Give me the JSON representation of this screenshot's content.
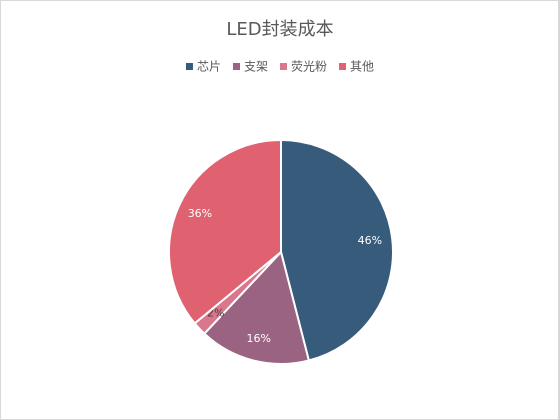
{
  "chart_data": {
    "type": "pie",
    "title": "LED封装成本",
    "categories": [
      "芯片",
      "支架",
      "荧光粉",
      "其他"
    ],
    "values": [
      46,
      16,
      2,
      36
    ],
    "value_labels": [
      "46%",
      "16%",
      "2%",
      "36%"
    ],
    "colors": [
      "#375b7b",
      "#9a6381",
      "#d9788d",
      "#e0616f"
    ],
    "legend": "top"
  }
}
